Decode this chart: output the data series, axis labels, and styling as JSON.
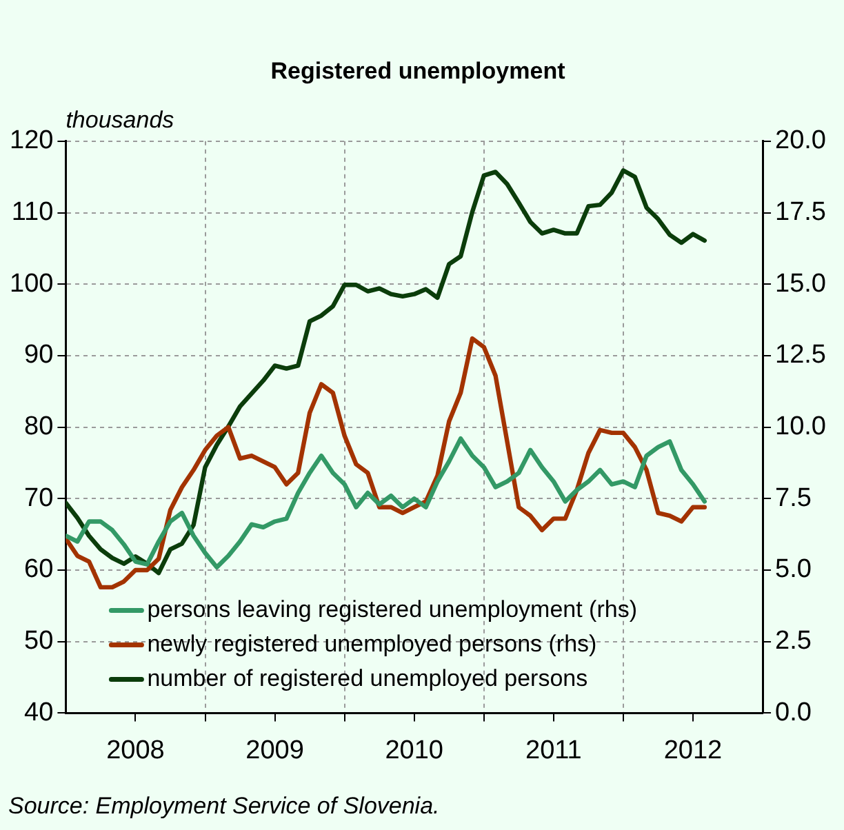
{
  "chart_data": {
    "type": "line",
    "title": "Registered unemployment",
    "ylabel": "thousands",
    "annotations": [
      "Source: Employment Service of Slovenia."
    ],
    "x": [
      "2008-01",
      "2008-02",
      "2008-03",
      "2008-04",
      "2008-05",
      "2008-06",
      "2008-07",
      "2008-08",
      "2008-09",
      "2008-10",
      "2008-11",
      "2008-12",
      "2009-01",
      "2009-02",
      "2009-03",
      "2009-04",
      "2009-05",
      "2009-06",
      "2009-07",
      "2009-08",
      "2009-09",
      "2009-10",
      "2009-11",
      "2009-12",
      "2010-01",
      "2010-02",
      "2010-03",
      "2010-04",
      "2010-05",
      "2010-06",
      "2010-07",
      "2010-08",
      "2010-09",
      "2010-10",
      "2010-11",
      "2010-12",
      "2011-01",
      "2011-02",
      "2011-03",
      "2011-04",
      "2011-05",
      "2011-06",
      "2011-07",
      "2011-08",
      "2011-09",
      "2011-10",
      "2011-11",
      "2011-12",
      "2012-01",
      "2012-02",
      "2012-03",
      "2012-04",
      "2012-05",
      "2012-06",
      "2012-07",
      "2012-08"
    ],
    "series": [
      {
        "name": "persons leaving registered unemployment (rhs)",
        "color": "#339966",
        "axis": "y2",
        "values": [
          6.2,
          6.0,
          6.7,
          6.7,
          6.4,
          5.9,
          5.3,
          5.2,
          6.0,
          6.7,
          7.0,
          6.2,
          5.6,
          5.1,
          5.5,
          6.0,
          6.6,
          6.5,
          6.7,
          6.8,
          7.7,
          8.4,
          9.0,
          8.4,
          8.0,
          7.2,
          7.7,
          7.3,
          7.6,
          7.2,
          7.5,
          7.2,
          8.1,
          8.8,
          9.6,
          9.0,
          8.6,
          7.9,
          8.1,
          8.4,
          9.2,
          8.6,
          8.1,
          7.4,
          7.8,
          8.1,
          8.5,
          8.0,
          8.1,
          7.9,
          9.0,
          9.3,
          9.5,
          8.5,
          8.0,
          7.4
        ]
      },
      {
        "name": "newly registered unemployed persons (rhs)",
        "color": "#a33300",
        "axis": "y2",
        "values": [
          6.1,
          5.5,
          5.3,
          4.4,
          4.4,
          4.6,
          5.0,
          5.0,
          5.4,
          7.1,
          7.9,
          8.5,
          9.2,
          9.7,
          10.0,
          8.9,
          9.0,
          8.8,
          8.6,
          8.0,
          8.4,
          10.5,
          11.5,
          11.2,
          9.7,
          8.7,
          8.4,
          7.2,
          7.2,
          7.0,
          7.2,
          7.4,
          8.3,
          10.2,
          11.2,
          13.1,
          12.8,
          11.8,
          9.5,
          7.2,
          6.9,
          6.4,
          6.8,
          6.8,
          7.8,
          9.1,
          9.9,
          9.8,
          9.8,
          9.3,
          8.5,
          7.0,
          6.9,
          6.7,
          7.2,
          7.2
        ]
      },
      {
        "name": "number of registered unemployed persons",
        "color": "#0b3d0b",
        "values": [
          69.4,
          67.3,
          64.8,
          62.9,
          61.7,
          60.9,
          61.9,
          60.9,
          59.6,
          62.9,
          63.7,
          66.3,
          74.4,
          77.5,
          80.1,
          82.9,
          84.7,
          86.5,
          88.6,
          88.2,
          88.6,
          94.8,
          95.6,
          96.9,
          99.9,
          99.9,
          99.0,
          99.4,
          98.6,
          98.3,
          98.6,
          99.3,
          98.1,
          102.8,
          103.9,
          110.1,
          115.2,
          115.7,
          114.0,
          111.4,
          108.7,
          107.1,
          107.6,
          107.1,
          107.1,
          110.9,
          111.1,
          112.8,
          115.9,
          115.0,
          110.7,
          109.1,
          106.9,
          105.8,
          107.0,
          106.1
        ]
      }
    ],
    "xlim": [
      "2008-01",
      "2013-01"
    ],
    "xticks": [
      {
        "value": "2008-07",
        "label": "2008"
      },
      {
        "value": "2009-01",
        "label": null
      },
      {
        "value": "2009-07",
        "label": "2009"
      },
      {
        "value": "2010-01",
        "label": null
      },
      {
        "value": "2010-07",
        "label": "2010"
      },
      {
        "value": "2011-01",
        "label": null
      },
      {
        "value": "2011-07",
        "label": "2011"
      },
      {
        "value": "2012-01",
        "label": null
      },
      {
        "value": "2012-07",
        "label": "2012"
      }
    ],
    "ylim": [
      40,
      120
    ],
    "yticks": [
      40,
      50,
      60,
      70,
      80,
      90,
      100,
      110,
      120
    ],
    "y2lim": [
      0,
      20
    ],
    "y2ticks": [
      {
        "value": 0,
        "label": "0.0"
      },
      2.5,
      {
        "value": 5,
        "label": "5.0"
      },
      7.5,
      {
        "value": 10,
        "label": "10.0"
      },
      12.5,
      {
        "value": 15,
        "label": "15.0"
      },
      17.5,
      {
        "value": 20,
        "label": "20.0"
      }
    ],
    "grid": true,
    "legend": "bottom left",
    "marker": "none",
    "line_style": "solid"
  }
}
